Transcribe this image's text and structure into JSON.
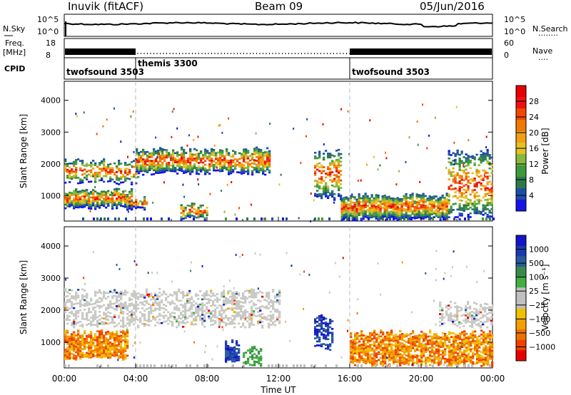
{
  "header": {
    "station": "Inuvik (fitACF)",
    "beam": "Beam 09",
    "date": "05/Jun/2016"
  },
  "noise_panel": {
    "left_label": "N.Sky",
    "right_label": "N.Search",
    "right_dots": "........",
    "left_ticks": [
      "10^5",
      "10^0"
    ],
    "right_ticks": [
      "10^5",
      "10^0"
    ]
  },
  "freq_panel": {
    "left_label_1": "Freq.",
    "left_label_2": "[MHz]",
    "right_label": "Nave",
    "right_dots": "....",
    "left_ticks": [
      "18",
      "8"
    ],
    "right_ticks": [
      "60",
      "0"
    ]
  },
  "cpid": {
    "label": "CPID",
    "segments": [
      {
        "name": "twofsound 3503",
        "start_hour": 0,
        "end_hour": 4
      },
      {
        "name": "themis 3300",
        "start_hour": 4,
        "end_hour": 16
      },
      {
        "name": "twofsound 3503",
        "start_hour": 16,
        "end_hour": 24
      }
    ]
  },
  "colors": {
    "power": [
      "#1414e6",
      "#1c4fa8",
      "#2c7a4a",
      "#3c9a3c",
      "#88b83c",
      "#e8c020",
      "#f0a010",
      "#f07800",
      "#f04800",
      "#f01010",
      "#e60000"
    ],
    "velocity": [
      "#e60000",
      "#f04000",
      "#f07000",
      "#f0a000",
      "#f0c000",
      "#c0c0c0",
      "#c0c0c0",
      "#40b040",
      "#3a8a4a",
      "#2a5a9a",
      "#1a3ab0",
      "#1414c8"
    ]
  },
  "chart_data": [
    {
      "type": "heatmap",
      "panel": "power",
      "ylabel": "Slant Range [km]",
      "y_ticks": [
        1000,
        2000,
        3000,
        4000
      ],
      "ylim": [
        200,
        4600
      ],
      "x_ticks": [
        "00:00",
        "04:00",
        "08:00",
        "12:00",
        "16:00",
        "20:00",
        "00:00"
      ],
      "colorbar": {
        "label": "Power [dB]",
        "ticks": [
          "28",
          "24",
          "20",
          "16",
          "12",
          "8",
          "4"
        ]
      },
      "bands": [
        {
          "start": 0.0,
          "end": 3.8,
          "low": 600,
          "high": 1150,
          "intensity": 0.85
        },
        {
          "start": 0.0,
          "end": 4.2,
          "low": 1400,
          "high": 2100,
          "intensity": 0.55
        },
        {
          "start": 4.0,
          "end": 11.5,
          "low": 1700,
          "high": 2450,
          "intensity": 0.75
        },
        {
          "start": 3.6,
          "end": 4.6,
          "low": 600,
          "high": 900,
          "intensity": 0.9
        },
        {
          "start": 6.5,
          "end": 8.0,
          "low": 250,
          "high": 700,
          "intensity": 0.6
        },
        {
          "start": 14.0,
          "end": 15.5,
          "low": 900,
          "high": 2400,
          "intensity": 0.5
        },
        {
          "start": 15.5,
          "end": 21.5,
          "low": 250,
          "high": 1000,
          "intensity": 0.9
        },
        {
          "start": 21.5,
          "end": 24.0,
          "low": 300,
          "high": 2400,
          "intensity": 0.45
        }
      ]
    },
    {
      "type": "heatmap",
      "panel": "velocity",
      "ylabel": "Slant Range [km]",
      "xlabel": "Time UT",
      "y_ticks": [
        1000,
        2000,
        3000,
        4000
      ],
      "ylim": [
        200,
        4600
      ],
      "x_ticks": [
        "00:00",
        "04:00",
        "08:00",
        "12:00",
        "16:00",
        "20:00",
        "00:00"
      ],
      "colorbar": {
        "label": "Velocity [m s⁻¹]",
        "ticks": [
          "1000",
          "500",
          "100",
          "25",
          "−25",
          "−100",
          "−500",
          "−1000"
        ]
      },
      "bands": [
        {
          "start": 0.0,
          "end": 3.5,
          "low": 500,
          "high": 1300,
          "intensity": 0.85,
          "kind": "neg"
        },
        {
          "start": 0.0,
          "end": 12.0,
          "low": 1500,
          "high": 2600,
          "intensity": 0.5,
          "kind": "grey"
        },
        {
          "start": 9.0,
          "end": 9.8,
          "low": 400,
          "high": 1000,
          "intensity": 0.9,
          "kind": "pos"
        },
        {
          "start": 10.0,
          "end": 11.0,
          "low": 300,
          "high": 800,
          "intensity": 0.6,
          "kind": "green"
        },
        {
          "start": 14.0,
          "end": 15.0,
          "low": 800,
          "high": 1800,
          "intensity": 0.6,
          "kind": "pos"
        },
        {
          "start": 16.0,
          "end": 24.0,
          "low": 300,
          "high": 1300,
          "intensity": 0.8,
          "kind": "neg"
        },
        {
          "start": 21.0,
          "end": 24.0,
          "low": 1500,
          "high": 2200,
          "intensity": 0.5,
          "kind": "grey"
        }
      ]
    }
  ]
}
